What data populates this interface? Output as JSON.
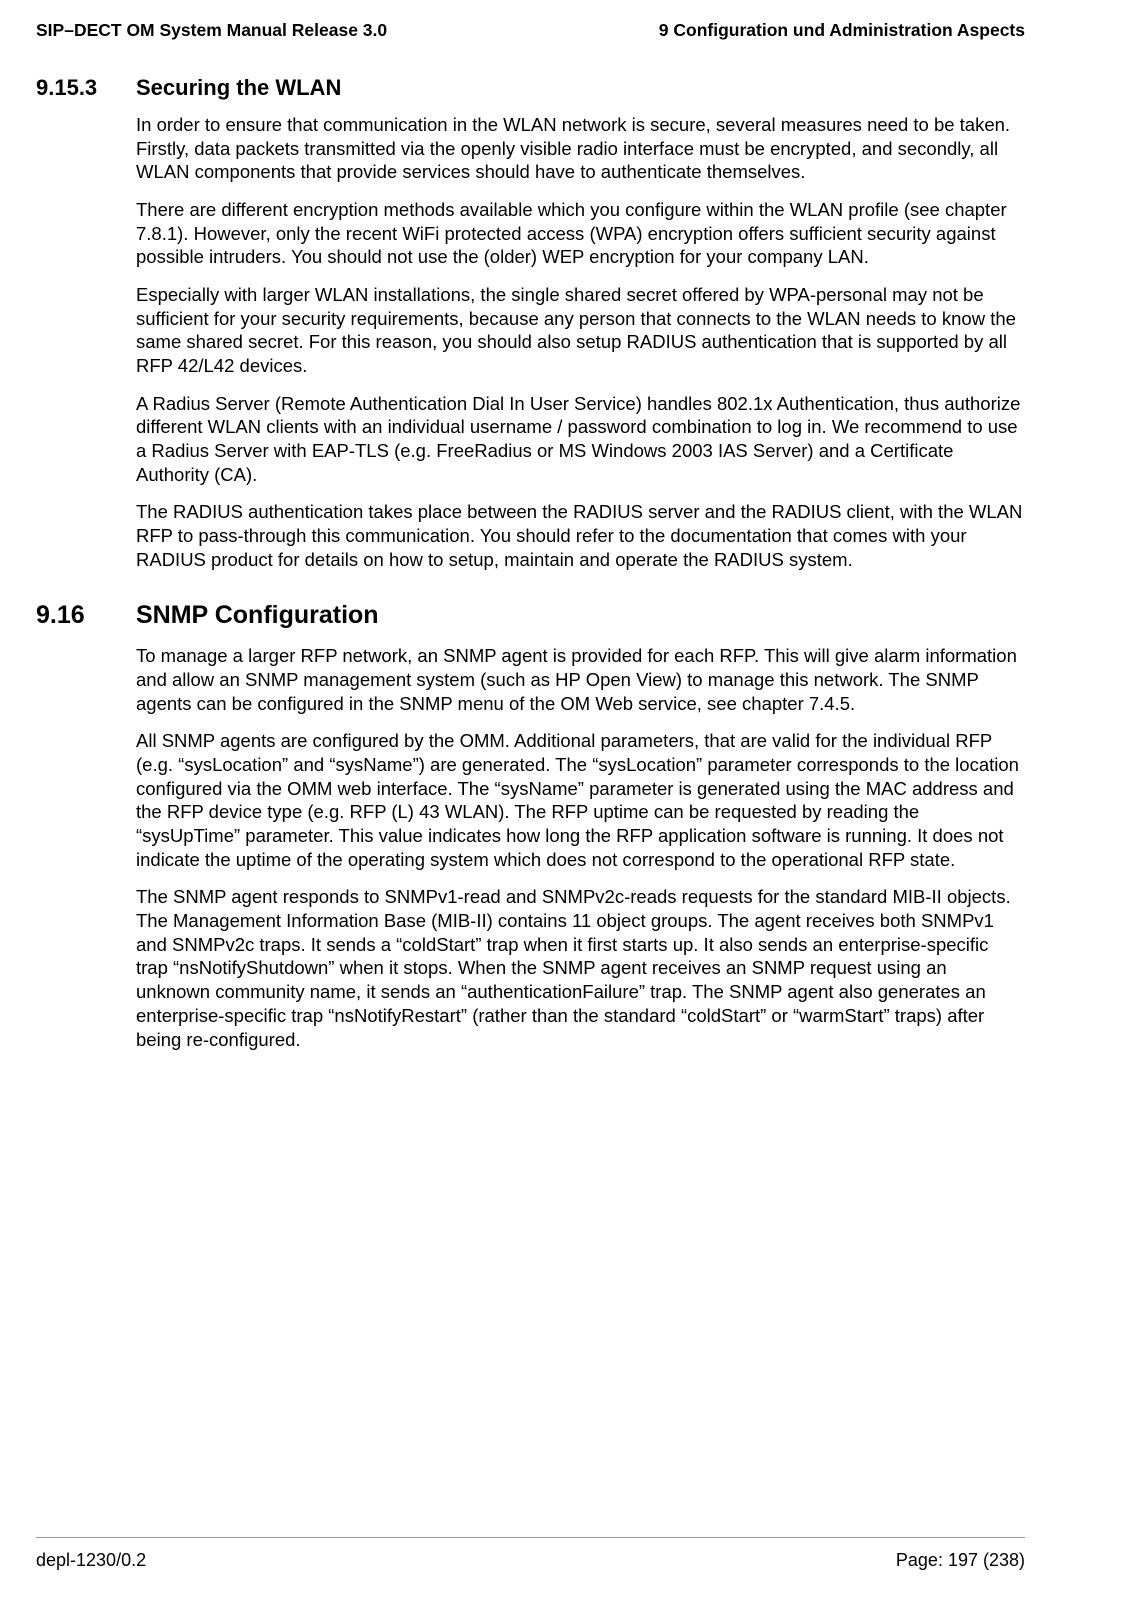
{
  "header": {
    "left": "SIP–DECT OM System Manual Release 3.0",
    "right": "9 Configuration und Administration Aspects"
  },
  "sections": [
    {
      "level": "h3",
      "number": "9.15.3",
      "title": "Securing the WLAN",
      "paragraphs": [
        "In order to ensure that communication in the WLAN network is secure, several measures need to be taken. Firstly, data packets transmitted via the openly visible radio interface must be encrypted, and secondly, all WLAN components that provide services should have to authenticate themselves.",
        "There are different encryption methods available which you configure within the WLAN profile (see chapter 7.8.1). However, only the recent WiFi protected access (WPA) encryption offers sufficient security against possible intruders. You should not use the (older) WEP encryption for your company LAN.",
        "Especially with larger WLAN installations, the single shared secret offered by WPA-personal may not be sufficient for your security requirements, because any person that connects to the WLAN needs to know the same shared secret. For this reason, you should also setup RADIUS authentication that is supported by all RFP 42/L42 devices.",
        "A Radius Server (Remote Authentication Dial In User Service) handles 802.1x Authentication, thus authorize different WLAN clients with an individual username / password combination to log in. We recommend to use a Radius Server with EAP-TLS (e.g. FreeRadius or MS Windows 2003 IAS Server) and a Certificate Authority (CA).",
        "The RADIUS authentication takes place between the RADIUS server and the RADIUS client, with the WLAN RFP to pass-through this communication. You should refer to the documentation that comes with your RADIUS product for details on how to setup, maintain and operate the RADIUS system."
      ]
    },
    {
      "level": "h2",
      "number": "9.16",
      "title": "SNMP Configuration",
      "paragraphs": [
        "To manage a larger RFP network, an SNMP agent is provided for each RFP. This will give alarm information and allow an SNMP management system (such as HP Open View) to manage this network. The SNMP agents can be configured in the SNMP menu of the OM Web service, see chapter 7.4.5.",
        "All SNMP agents are configured by the OMM. Additional parameters, that are valid for the individual RFP (e.g. “sysLocation” and “sysName”) are generated. The “sysLocation” parameter corresponds to the location configured via the OMM web interface. The “sysName” parameter is generated using the MAC address and the RFP device type (e.g. RFP (L) 43 WLAN). The RFP uptime can be requested by reading the “sysUpTime” parameter. This value indicates how long the RFP application software is running. It does not indicate the uptime of the operating system which does not correspond to the operational RFP state.",
        "The SNMP agent responds to SNMPv1-read and SNMPv2c-reads requests for the standard MIB-II objects. The Management Information Base (MIB-II) contains 11 object groups. The agent receives both SNMPv1 and SNMPv2c traps. It sends a “coldStart” trap when it first starts up. It also sends an enterprise-specific trap “nsNotifyShutdown” when it stops. When the SNMP agent receives an SNMP request using an unknown community name, it sends an “authenticationFailure” trap. The SNMP agent also generates an enterprise-specific trap “nsNotifyRestart” (rather than the standard “coldStart” or “warmStart” traps) after being re-configured."
      ]
    }
  ],
  "footer": {
    "left": "depl-1230/0.2",
    "right": "Page: 197 (238)"
  }
}
